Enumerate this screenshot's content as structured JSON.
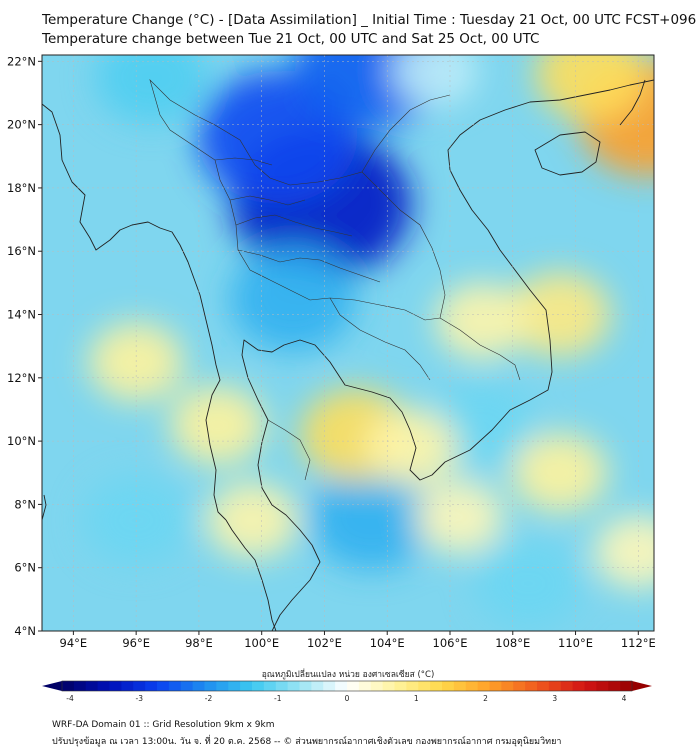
{
  "title": {
    "line1": "Temperature Change (°C) - [Data Assimilation] _ Initial Time : Tuesday 21 Oct, 00 UTC FCST+096",
    "line2": "Temperature change between Tue 21 Oct, 00 UTC and Sat 25 Oct, 00 UTC"
  },
  "map": {
    "lon_range": [
      93,
      112.5
    ],
    "lat_range": [
      4,
      22.2
    ],
    "lon_ticks": [
      {
        "value": 94,
        "label": "94°E"
      },
      {
        "value": 96,
        "label": "96°E"
      },
      {
        "value": 98,
        "label": "98°E"
      },
      {
        "value": 100,
        "label": "100°E"
      },
      {
        "value": 102,
        "label": "102°E"
      },
      {
        "value": 104,
        "label": "104°E"
      },
      {
        "value": 106,
        "label": "106°E"
      },
      {
        "value": 108,
        "label": "108°E"
      },
      {
        "value": 110,
        "label": "110°E"
      },
      {
        "value": 112,
        "label": "112°E"
      }
    ],
    "lat_ticks": [
      {
        "value": 22,
        "label": "22°N"
      },
      {
        "value": 20,
        "label": "20°N"
      },
      {
        "value": 18,
        "label": "18°N"
      },
      {
        "value": 16,
        "label": "16°N"
      },
      {
        "value": 14,
        "label": "14°N"
      },
      {
        "value": 12,
        "label": "12°N"
      },
      {
        "value": 10,
        "label": "10°N"
      },
      {
        "value": 8,
        "label": "8°N"
      },
      {
        "value": 6,
        "label": "6°N"
      },
      {
        "value": 4,
        "label": "4°N"
      }
    ],
    "field_anomalies_degC": [
      {
        "lon": 101.9,
        "lat": 17.5,
        "value": -3.2,
        "note": "strong cooling northeast Thailand"
      },
      {
        "lon": 100.5,
        "lat": 19.6,
        "value": -2.6
      },
      {
        "lon": 103.5,
        "lat": 21.9,
        "value": -2.4
      },
      {
        "lon": 101.0,
        "lat": 14.5,
        "value": -1.6
      },
      {
        "lon": 96.5,
        "lat": 21.5,
        "value": -1.2
      },
      {
        "lon": 103.5,
        "lat": 7.6,
        "value": -1.6
      },
      {
        "lon": 96.0,
        "lat": 7.5,
        "value": -1.0
      },
      {
        "lon": 108.5,
        "lat": 5.5,
        "value": -1.0
      },
      {
        "lon": 107.0,
        "lat": 10.5,
        "value": -1.0
      },
      {
        "lon": 112.3,
        "lat": 20.2,
        "value": 2.0,
        "note": "warming near Leizhou"
      },
      {
        "lon": 110.5,
        "lat": 21.6,
        "value": 1.2
      },
      {
        "lon": 103.0,
        "lat": 10.2,
        "value": 1.2
      },
      {
        "lon": 96.0,
        "lat": 12.5,
        "value": 0.7
      },
      {
        "lon": 109.5,
        "lat": 14.0,
        "value": 0.9
      },
      {
        "lon": 107.0,
        "lat": 13.8,
        "value": 0.6
      },
      {
        "lon": 98.6,
        "lat": 10.5,
        "value": 0.7
      },
      {
        "lon": 104.8,
        "lat": 9.8,
        "value": 0.6
      },
      {
        "lon": 99.7,
        "lat": 7.5,
        "value": 0.6
      },
      {
        "lon": 109.5,
        "lat": 9.0,
        "value": 0.7
      },
      {
        "lon": 106.3,
        "lat": 7.6,
        "value": 0.5
      },
      {
        "lon": 112.0,
        "lat": 6.5,
        "value": 0.5
      },
      {
        "lon": 105.5,
        "lat": 21.7,
        "value": -0.4
      }
    ]
  },
  "colorbar": {
    "label": "อุณหภูมิเปลี่ยนแปลง หน่วย องศาเซลเซียส (°C)",
    "min": -4,
    "max": 4,
    "ticks": [
      "-4",
      "-3",
      "-2",
      "-1",
      "0",
      "1",
      "2",
      "3",
      "4"
    ],
    "colors": [
      "#000066",
      "#0010b8",
      "#0a40f0",
      "#1e8cf0",
      "#3cc8f0",
      "#9ae4f4",
      "#ffffff",
      "#fff4a0",
      "#ffd84a",
      "#ffa028",
      "#f05a1e",
      "#d21414",
      "#960000"
    ]
  },
  "footer": {
    "line1": "WRF-DA Domain 01 :: Grid Resolution 9km x 9km",
    "line2": "ปรับปรุงข้อมูล ณ เวลา 13:00น. วัน จ. ที่ 20 ต.ค. 2568 -- © ส่วนพยากรณ์อากาศเชิงตัวเลข กองพยากรณ์อากาศ กรมอุตุนิยมวิทยา"
  }
}
